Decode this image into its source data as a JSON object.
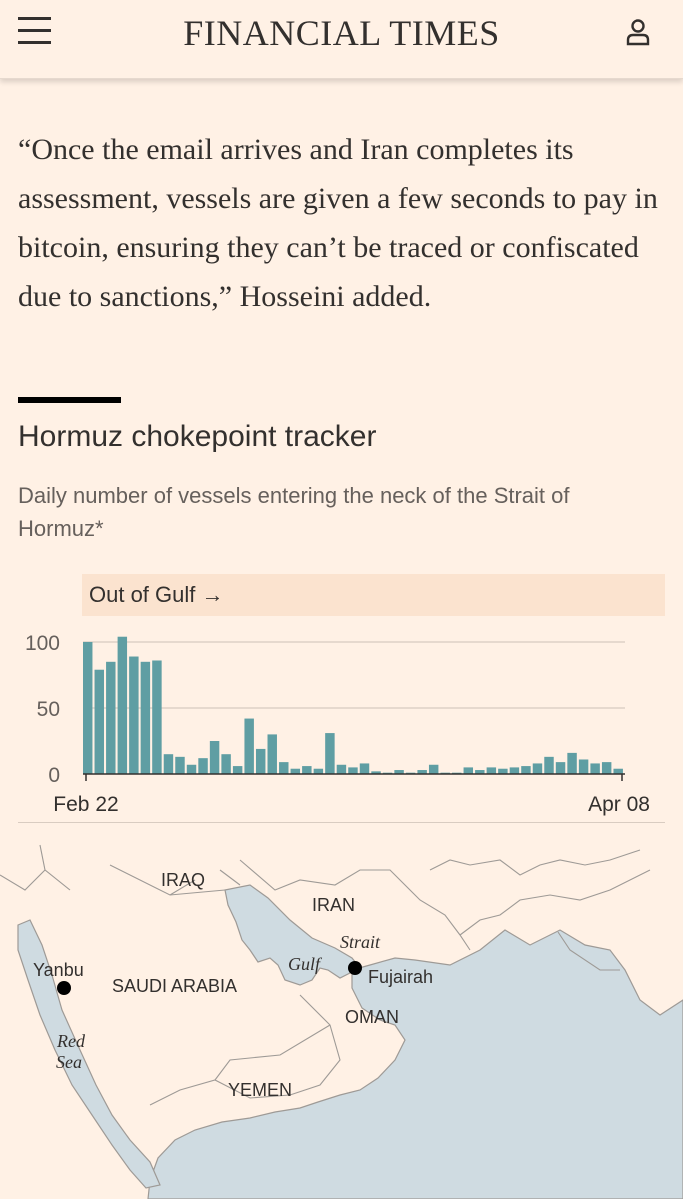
{
  "header": {
    "brand": "FINANCIAL TIMES",
    "menu_icon": "hamburger-menu-icon",
    "account_icon": "user-icon"
  },
  "article": {
    "quote": "“Once the email arrives and Iran completes its assessment, vessels are given a few seconds to pay in bitcoin, ensuring they can’t be traced or confiscated due to sanctions,” Hosseini added."
  },
  "chart_section": {
    "title": "Hormuz chokepoint tracker",
    "subtitle": "Daily number of vessels entering the neck of the Strait of Hormuz*",
    "direction_label": "Out of Gulf →"
  },
  "chart_data": {
    "type": "bar",
    "title": "Hormuz chokepoint tracker",
    "subtitle": "Daily number of vessels entering the neck of the Strait of Hormuz*",
    "panel_label": "Out of Gulf →",
    "x_start_label": "Feb 22",
    "x_end_label": "Apr 08",
    "y_ticks": [
      0,
      50,
      100
    ],
    "ylim": [
      0,
      105
    ],
    "grid": true,
    "bar_color": "#5f9ea3",
    "values": [
      100,
      79,
      85,
      104,
      89,
      85,
      86,
      15,
      13,
      7,
      12,
      25,
      15,
      6,
      42,
      19,
      30,
      9,
      4,
      6,
      4,
      31,
      7,
      5,
      8,
      2,
      1,
      3,
      1,
      3,
      7,
      1,
      1,
      5,
      3,
      5,
      4,
      5,
      6,
      8,
      13,
      9,
      16,
      11,
      8,
      9,
      4
    ]
  },
  "map": {
    "labels": {
      "iraq": "IRAQ",
      "iran": "IRAN",
      "saudi": "SAUDI ARABIA",
      "oman": "OMAN",
      "yemen": "YEMEN",
      "yanbu": "Yanbu",
      "fujairah": "Fujairah",
      "gulf": "Gulf",
      "strait": "Strait",
      "red": "Red",
      "sea": "Sea"
    },
    "water_color": "#cfdbe1",
    "land_color": "#fff1e5",
    "border_color": "#9e9a96"
  }
}
